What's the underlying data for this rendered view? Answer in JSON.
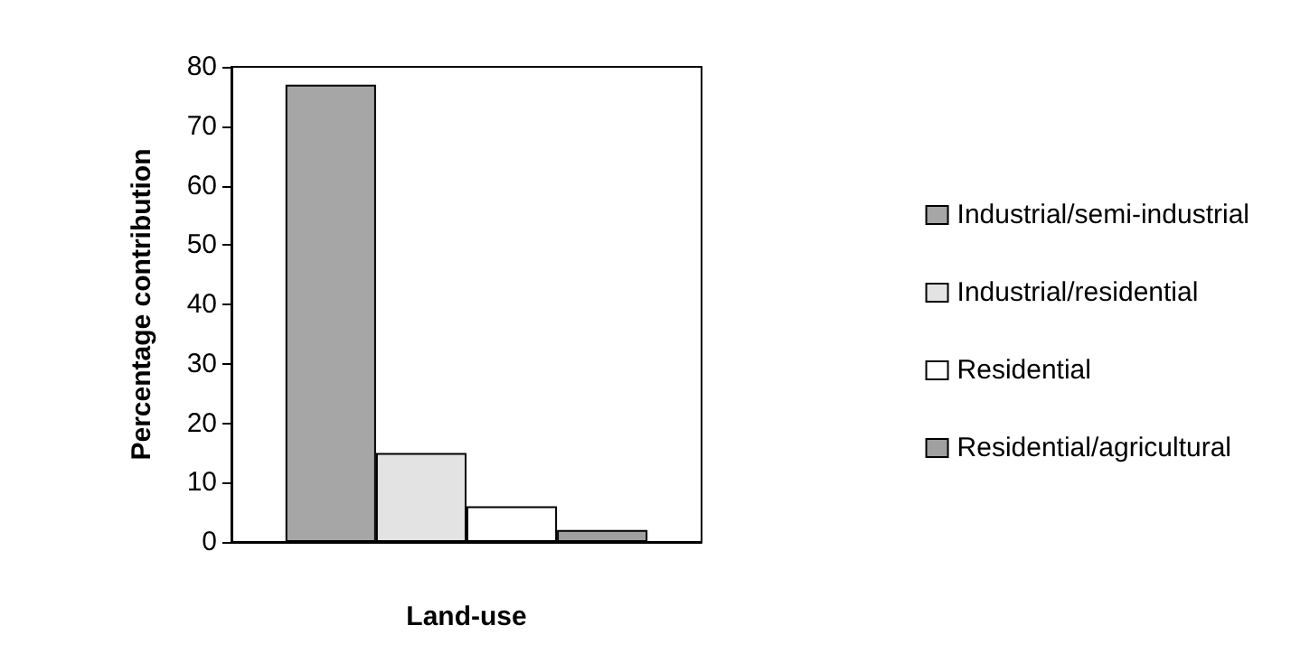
{
  "chart_data": {
    "type": "bar",
    "xlabel": "Land-use",
    "ylabel": "Percentage contribution",
    "categories": [
      null
    ],
    "series": [
      {
        "name": "Industrial/semi-industrial",
        "color": "#a6a6a6",
        "values": [
          77
        ]
      },
      {
        "name": "Industrial/residential",
        "color": "#e3e3e3",
        "values": [
          15
        ]
      },
      {
        "name": "Residential",
        "color": "#ffffff",
        "values": [
          6
        ]
      },
      {
        "name": "Residential/agricultural",
        "color": "#a0a0a0",
        "values": [
          2
        ]
      }
    ],
    "ylim": [
      0,
      80
    ],
    "yticks": [
      0,
      10,
      20,
      30,
      40,
      50,
      60,
      70,
      80
    ],
    "grid": false,
    "legend": "right"
  }
}
